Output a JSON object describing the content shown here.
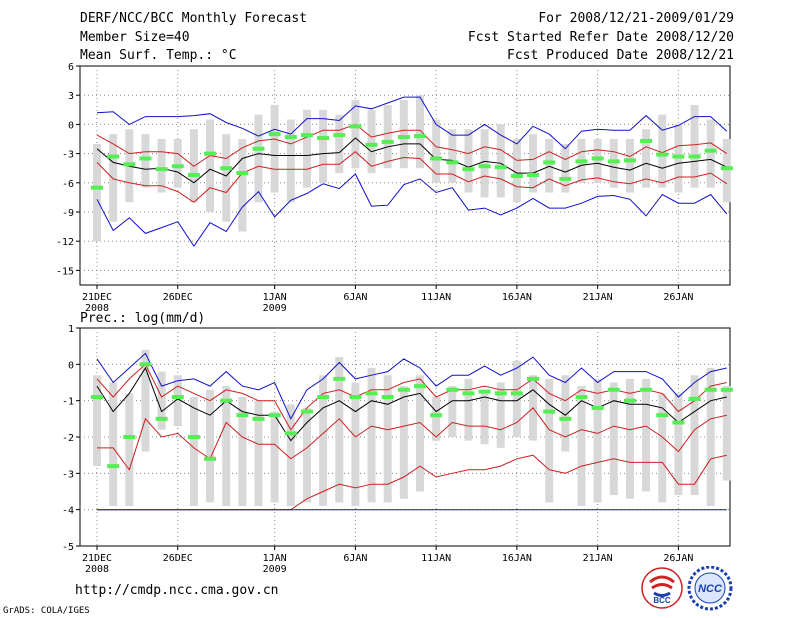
{
  "header": {
    "title": "DERF/NCC/BCC Monthly Forecast",
    "member": "Member Size=40",
    "variable": "Mean Surf. Temp.: °C",
    "period": "For 2008/12/21-2009/01/29",
    "start": "Fcst Started Refer Date 2008/12/20",
    "produced": "Fcst Produced Date 2008/12/21"
  },
  "footer": {
    "url": "http://cmdp.ncc.cma.gov.cn",
    "credit": "GrADS: COLA/IGES",
    "logo_left": "BCC",
    "logo_right": "NCC"
  },
  "colors": {
    "bar": "#d8d8d8",
    "green": "#55ee55",
    "mean": "#000000",
    "red": "#cc2020",
    "blue": "#1010cc",
    "grid": "#888888"
  },
  "chart_data": [
    {
      "type": "line",
      "name": "temp-chart",
      "title": "Mean Surf. Temp.: °C",
      "ylabel": "",
      "ylim": [
        -16.5,
        6
      ],
      "yticks": [
        6,
        3,
        0,
        -3,
        -6,
        -9,
        -12,
        -15
      ],
      "xticks": [
        {
          "day": 0,
          "label": "21DEC",
          "sub": "2008"
        },
        {
          "day": 5,
          "label": "26DEC",
          "sub": ""
        },
        {
          "day": 11,
          "label": "1JAN",
          "sub": "2009"
        },
        {
          "day": 16,
          "label": "6JAN",
          "sub": ""
        },
        {
          "day": 21,
          "label": "11JAN",
          "sub": ""
        },
        {
          "day": 26,
          "label": "16JAN",
          "sub": ""
        },
        {
          "day": 31,
          "label": "21JAN",
          "sub": ""
        },
        {
          "day": 36,
          "label": "26JAN",
          "sub": ""
        }
      ],
      "bar_low": [
        -12,
        -10,
        -8,
        -6.5,
        -7,
        -6.5,
        -8,
        -9,
        -10,
        -11,
        -8,
        -7,
        -8,
        -6.5,
        -6,
        -5,
        -4.5,
        -5,
        -4.5,
        -4.5,
        -4.5,
        -6,
        -6,
        -7,
        -7.5,
        -7.5,
        -8,
        -7,
        -7,
        -7,
        -6,
        -6,
        -6.5,
        -7,
        -6.5,
        -6.5,
        -7,
        -6.5,
        -6.5,
        -8
      ],
      "bar_high": [
        -2,
        -1,
        -0.5,
        -1,
        -1.5,
        -1.5,
        -0.5,
        0.5,
        -1,
        -1.5,
        1,
        2,
        0.5,
        1.5,
        1.5,
        1,
        2.5,
        1.5,
        2,
        2.5,
        3,
        0.5,
        -0.5,
        -0.5,
        -0.5,
        0,
        -1.5,
        -1,
        -1.5,
        -2,
        -1.5,
        -1.5,
        -1.5,
        -1.5,
        -0.5,
        1,
        0,
        2,
        0.5,
        -1.5
      ],
      "green": [
        -6.5,
        -3.3,
        -4.1,
        -3.5,
        -4.6,
        -4.3,
        -5.2,
        -3,
        -4.5,
        -5,
        -2.5,
        -1,
        -1.3,
        -1.1,
        -1.4,
        -1.1,
        -0.2,
        -2.1,
        -1.8,
        -1.3,
        -1.2,
        -3.5,
        -3.9,
        -4.6,
        -4.3,
        -4.4,
        -5.3,
        -5.2,
        -3.9,
        -5.6,
        -3.8,
        -3.5,
        -3.8,
        -3.7,
        -1.7,
        -3.1,
        -3.3,
        -3.3,
        -2.7,
        -4.5
      ],
      "series": [
        {
          "name": "ensemble-mean",
          "color": "#000000",
          "values": [
            -2.5,
            -3.9,
            -4.3,
            -4.6,
            -4.5,
            -4.9,
            -6.0,
            -4.6,
            -5.3,
            -3.5,
            -3.0,
            -3.2,
            -3.2,
            -3.2,
            -3.0,
            -2.9,
            -1.4,
            -2.8,
            -2.3,
            -2.0,
            -2.0,
            -3.6,
            -3.7,
            -4.4,
            -3.8,
            -4.0,
            -5.0,
            -5.0,
            -4.3,
            -4.9,
            -4.2,
            -4.0,
            -4.4,
            -4.7,
            -4.0,
            -4.5,
            -4.0,
            -3.8,
            -3.6,
            -4.4
          ]
        },
        {
          "name": "upper-red",
          "color": "#cc2020",
          "values": [
            -1.1,
            -2.0,
            -3.0,
            -2.8,
            -2.8,
            -3.0,
            -4.3,
            -3.2,
            -3.5,
            -2.4,
            -1.7,
            -1.5,
            -2.0,
            -1.3,
            -0.6,
            -0.6,
            0.0,
            -1.3,
            -0.9,
            -0.6,
            -0.6,
            -2.3,
            -2.6,
            -3.0,
            -2.3,
            -2.6,
            -3.7,
            -3.6,
            -2.8,
            -3.6,
            -2.8,
            -2.6,
            -2.8,
            -3.3,
            -2.3,
            -2.9,
            -2.2,
            -2.1,
            -1.9,
            -3.0
          ]
        },
        {
          "name": "lower-red",
          "color": "#cc2020",
          "values": [
            -3.9,
            -5.6,
            -6.0,
            -6.3,
            -6.3,
            -6.9,
            -8.0,
            -6.5,
            -7.0,
            -5.0,
            -4.3,
            -4.6,
            -4.6,
            -4.6,
            -4.1,
            -4.1,
            -2.8,
            -4.3,
            -3.8,
            -3.4,
            -3.5,
            -5.1,
            -5.1,
            -5.9,
            -5.3,
            -5.6,
            -6.4,
            -6.5,
            -5.6,
            -6.3,
            -5.7,
            -5.5,
            -5.9,
            -6.1,
            -5.6,
            -6.0,
            -5.4,
            -5.4,
            -5.0,
            -6.1
          ]
        },
        {
          "name": "upper-blue",
          "color": "#1010cc",
          "values": [
            1.2,
            1.3,
            0.0,
            0.8,
            0.8,
            0.8,
            0.9,
            1.1,
            0.2,
            -0.4,
            -1.2,
            -0.5,
            -1.0,
            0.6,
            0.6,
            0.4,
            1.9,
            1.6,
            2.2,
            2.8,
            2.8,
            0.0,
            -1.1,
            -1.1,
            0.0,
            -1.1,
            -2.0,
            -0.2,
            -1.0,
            -2.5,
            -0.7,
            -0.5,
            -0.6,
            -0.6,
            0.9,
            -0.6,
            -0.1,
            0.8,
            0.8,
            -0.7
          ]
        },
        {
          "name": "lower-blue",
          "color": "#1010cc",
          "values": [
            -7.7,
            -10.9,
            -9.6,
            -11.2,
            -10.6,
            -10.0,
            -12.5,
            -10.1,
            -11.0,
            -8.5,
            -6.9,
            -9.5,
            -7.8,
            -7.1,
            -6.1,
            -6.6,
            -5.1,
            -8.4,
            -8.3,
            -6.2,
            -5.6,
            -7.0,
            -6.5,
            -8.8,
            -8.6,
            -9.3,
            -8.6,
            -7.6,
            -8.6,
            -8.6,
            -8.1,
            -7.4,
            -7.3,
            -7.7,
            -9.4,
            -7.2,
            -8.1,
            -8.1,
            -7.2,
            -9.2
          ]
        }
      ]
    },
    {
      "type": "line",
      "name": "prec-chart",
      "title": "Prec.: log(mm/d)",
      "ylabel": "",
      "ylim": [
        -5,
        1
      ],
      "yticks": [
        1,
        0,
        -1,
        -2,
        -3,
        -4,
        -5
      ],
      "xticks": [
        {
          "day": 0,
          "label": "21DEC",
          "sub": "2008"
        },
        {
          "day": 5,
          "label": "26DEC",
          "sub": ""
        },
        {
          "day": 11,
          "label": "1JAN",
          "sub": "2009"
        },
        {
          "day": 16,
          "label": "6JAN",
          "sub": ""
        },
        {
          "day": 21,
          "label": "11JAN",
          "sub": ""
        },
        {
          "day": 26,
          "label": "16JAN",
          "sub": ""
        },
        {
          "day": 31,
          "label": "21JAN",
          "sub": ""
        },
        {
          "day": 36,
          "label": "26JAN",
          "sub": ""
        }
      ],
      "bar_low": [
        -2.8,
        -3.9,
        -3.9,
        -2.4,
        -1.8,
        -1.7,
        -3.9,
        -3.8,
        -3.9,
        -3.9,
        -3.9,
        -3.8,
        -3.9,
        -3.8,
        -3.9,
        -3.8,
        -3.9,
        -3.8,
        -3.8,
        -3.7,
        -3.5,
        -2.1,
        -2.0,
        -2.1,
        -2.2,
        -2.3,
        -2.0,
        -2.1,
        -3.8,
        -2.4,
        -3.9,
        -3.8,
        -3.6,
        -3.7,
        -3.5,
        -3.8,
        -3.6,
        -3.6,
        -3.9,
        -3.2
      ],
      "bar_high": [
        -0.3,
        -0.5,
        -0.8,
        0.4,
        -0.2,
        -0.3,
        -0.9,
        -0.7,
        -0.6,
        -0.9,
        -1.0,
        -1.3,
        -1.1,
        -1.2,
        -0.3,
        0.2,
        -0.5,
        -0.1,
        -0.3,
        -0.6,
        -0.3,
        -0.9,
        -0.6,
        -0.4,
        -0.7,
        -0.5,
        0.1,
        -0.3,
        -0.4,
        -0.3,
        -0.6,
        -0.4,
        -0.5,
        -0.4,
        -0.4,
        -0.8,
        -0.8,
        -0.3,
        -0.1,
        -0.6
      ],
      "green": [
        -0.9,
        -2.8,
        -2.0,
        0.0,
        -1.5,
        -0.9,
        -2.0,
        -2.6,
        -1.0,
        -1.4,
        -1.5,
        -1.4,
        -1.9,
        -1.3,
        -0.9,
        -0.4,
        -0.9,
        -0.8,
        -0.9,
        -0.7,
        -0.6,
        -1.4,
        -0.7,
        -0.8,
        -0.75,
        -0.8,
        -0.8,
        -0.4,
        -1.3,
        -1.5,
        -0.9,
        -1.2,
        -0.7,
        -1.0,
        -0.7,
        -1.4,
        -1.6,
        -0.95,
        -0.7,
        -0.7
      ],
      "series": [
        {
          "name": "ensemble-mean",
          "color": "#000000",
          "values": [
            -0.6,
            -1.3,
            -0.8,
            -0.1,
            -1.3,
            -0.95,
            -1.2,
            -1.4,
            -1.0,
            -1.3,
            -1.4,
            -1.4,
            -2.1,
            -1.6,
            -1.2,
            -1.0,
            -1.3,
            -1.0,
            -1.1,
            -0.9,
            -0.8,
            -1.3,
            -1.0,
            -1.0,
            -0.9,
            -1.0,
            -1.0,
            -0.7,
            -1.1,
            -1.4,
            -1.0,
            -1.2,
            -1.0,
            -1.1,
            -1.1,
            -1.2,
            -1.6,
            -1.3,
            -1.0,
            -0.9
          ]
        },
        {
          "name": "upper-red",
          "color": "#cc2020",
          "values": [
            -0.4,
            -0.9,
            -0.4,
            0.0,
            -0.9,
            -0.6,
            -0.8,
            -1.0,
            -0.7,
            -0.8,
            -1.0,
            -1.0,
            -1.8,
            -1.2,
            -0.8,
            -0.7,
            -0.9,
            -0.7,
            -0.7,
            -0.5,
            -0.4,
            -0.9,
            -0.7,
            -0.7,
            -0.6,
            -0.7,
            -0.7,
            -0.4,
            -0.8,
            -1.0,
            -0.7,
            -0.8,
            -0.7,
            -0.8,
            -0.7,
            -0.8,
            -1.3,
            -1.0,
            -0.6,
            -0.5
          ]
        },
        {
          "name": "lower-red-1",
          "color": "#cc2020",
          "values": [
            -2.3,
            -2.3,
            -2.9,
            -1.5,
            -2.0,
            -1.9,
            -2.3,
            -2.6,
            -1.6,
            -2.0,
            -2.2,
            -2.2,
            -2.6,
            -2.3,
            -1.9,
            -1.5,
            -2.0,
            -1.7,
            -1.8,
            -1.7,
            -1.6,
            -2.0,
            -1.6,
            -1.7,
            -1.7,
            -1.8,
            -1.6,
            -1.2,
            -1.8,
            -2.0,
            -1.8,
            -1.9,
            -1.7,
            -1.8,
            -1.7,
            -2.0,
            -2.4,
            -1.8,
            -1.5,
            -1.4
          ]
        },
        {
          "name": "lower-red-2",
          "color": "#cc2020",
          "values": [
            -4.0,
            -4.0,
            -4.0,
            -4.0,
            -4.0,
            -4.0,
            -4.0,
            -4.0,
            -4.0,
            -4.0,
            -4.0,
            -4.0,
            -4.0,
            -3.7,
            -3.5,
            -3.3,
            -3.4,
            -3.3,
            -3.3,
            -3.1,
            -2.8,
            -3.1,
            -3.0,
            -2.9,
            -2.9,
            -2.8,
            -2.6,
            -2.5,
            -2.9,
            -3.0,
            -2.8,
            -2.7,
            -2.6,
            -2.7,
            -2.7,
            -2.7,
            -3.3,
            -3.3,
            -2.6,
            -2.5
          ]
        },
        {
          "name": "upper-blue",
          "color": "#1010cc",
          "values": [
            0.15,
            -0.5,
            -0.1,
            0.3,
            -0.6,
            -0.45,
            -0.4,
            -0.6,
            -0.2,
            -0.6,
            -0.7,
            -0.5,
            -1.5,
            -0.7,
            -0.4,
            0.05,
            -0.4,
            -0.3,
            -0.2,
            0.15,
            -0.1,
            -0.6,
            -0.3,
            -0.3,
            -0.05,
            -0.3,
            -0.1,
            0.2,
            -0.3,
            -0.5,
            -0.1,
            -0.5,
            -0.2,
            -0.2,
            -0.2,
            -0.4,
            -0.9,
            -0.5,
            -0.2,
            -0.1
          ]
        },
        {
          "name": "lower-blue",
          "color": "#1010cc",
          "values": [
            -4.0,
            -4.0,
            -4.0,
            -4.0,
            -4.0,
            -4.0,
            -4.0,
            -4.0,
            -4.0,
            -4.0,
            -4.0,
            -4.0,
            -4.0,
            -4.0,
            -4.0,
            -4.0,
            -4.0,
            -4.0,
            -4.0,
            -4.0,
            -4.0,
            -4.0,
            -4.0,
            -4.0,
            -4.0,
            -4.0,
            -4.0,
            -4.0,
            -4.0,
            -4.0,
            -4.0,
            -4.0,
            -4.0,
            -4.0,
            -4.0,
            -4.0,
            -4.0,
            -4.0,
            -4.0,
            -4.0
          ]
        }
      ]
    }
  ]
}
